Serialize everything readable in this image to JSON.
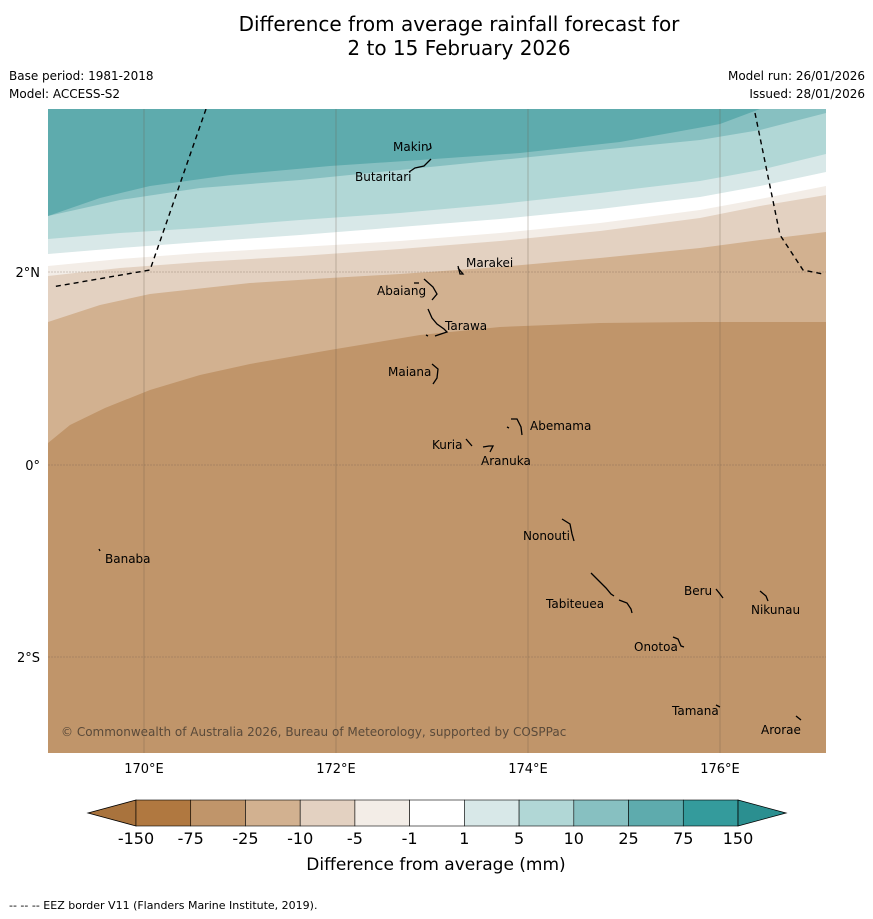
{
  "title": {
    "line1": "Difference from average rainfall forecast for",
    "line2": "2 to 15 February 2026"
  },
  "meta": {
    "base_period": "Base period: 1981-2018",
    "model": "Model: ACCESS-S2",
    "model_run": "Model run: 26/01/2026",
    "issued": "Issued: 28/01/2026"
  },
  "map": {
    "copyright": "© Commonwealth of Australia 2026, Bureau of Meteorology, supported by COSPPac",
    "lat_labels": [
      "2°N",
      "0°",
      "2°S"
    ],
    "lon_labels": [
      "170°E",
      "172°E",
      "174°E",
      "176°E"
    ],
    "places": [
      "Makin",
      "Butaritari",
      "Marakei",
      "Abaiang",
      "Tarawa",
      "Maiana",
      "Abemama",
      "Kuria",
      "Aranuka",
      "Nonouti",
      "Banaba",
      "Beru",
      "Nikunau",
      "Tabiteuea",
      "Onotoa",
      "Tamana",
      "Arorae"
    ]
  },
  "colorbar": {
    "ticks": [
      "-150",
      "-75",
      "-25",
      "-10",
      "-5",
      "-1",
      "1",
      "5",
      "10",
      "25",
      "75",
      "150"
    ],
    "colors": [
      "#b07840",
      "#c0956a",
      "#d2b190",
      "#e3d1c1",
      "#f3ede7",
      "#ffffff",
      "#d8e8e8",
      "#b1d7d6",
      "#87c0c1",
      "#5eabad",
      "#349b9c",
      "#2a8d8e"
    ],
    "label": "Difference from average (mm)",
    "low_color": "#a9733d",
    "high_color": "#2b8f90"
  },
  "footer": "--  --  -- EEZ border V11 (Flanders Marine Institute, 2019)."
}
